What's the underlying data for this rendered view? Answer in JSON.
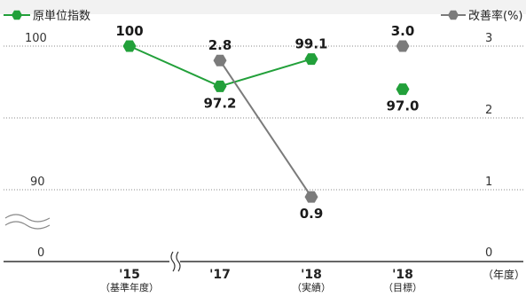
{
  "chart_data": {
    "type": "line",
    "categories": [
      "'15",
      "'17",
      "'18",
      "'18"
    ],
    "category_sublabels": [
      "（基準年度）",
      "",
      "（実績）",
      "（目標）"
    ],
    "x_unit_label": "（年度）",
    "series": [
      {
        "name": "原単位指数",
        "axis": "left",
        "color": "#22a03a",
        "values": [
          100,
          97.2,
          99.1,
          97.0
        ],
        "labels": [
          "100",
          "97.2",
          "99.1",
          "97.0"
        ],
        "connected_points": 3
      },
      {
        "name": "改善率(%)",
        "axis": "right",
        "color": "#7b7b7b",
        "values": [
          null,
          2.8,
          0.9,
          3.0
        ],
        "labels": [
          "",
          "2.8",
          "0.9",
          "3.0"
        ],
        "connected_points": 3
      }
    ],
    "left_axis": {
      "ticks": [
        "0",
        "90",
        "100"
      ],
      "break_below": 90,
      "ylim": [
        90,
        100
      ]
    },
    "right_axis": {
      "ticks": [
        "0",
        "1",
        "2",
        "3"
      ],
      "ylim": [
        0,
        3
      ]
    },
    "x_axis_break_between": [
      "'15",
      "'17"
    ],
    "grid": "dotted-horizontal",
    "legend_position": "top"
  }
}
